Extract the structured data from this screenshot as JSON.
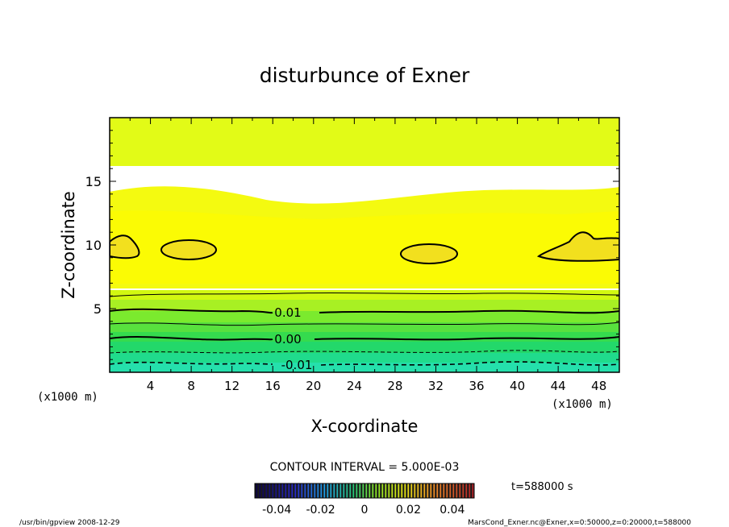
{
  "chart_data": {
    "type": "heatmap",
    "title": "disturbunce of Exner",
    "xlabel": "X-coordinate",
    "ylabel": "Z-coordinate",
    "x_unit_left": "(x1000 m)",
    "x_unit_right": "(x1000 m)",
    "xlim": [
      0,
      50
    ],
    "ylim": [
      0,
      20
    ],
    "x_ticks": [
      4,
      8,
      12,
      16,
      20,
      24,
      28,
      32,
      36,
      40,
      44,
      48
    ],
    "y_ticks": [
      5,
      10,
      15
    ],
    "contour_labels": [
      {
        "label": "0.01",
        "x": 17.3,
        "z": 4.7
      },
      {
        "label": "0.00",
        "x": 17.3,
        "z": 2.6
      },
      {
        "label": "-0.01",
        "x": 17.3,
        "z": 0.6
      }
    ],
    "contour_interval_text": "CONTOUR INTERVAL = 5.000E-03",
    "colorbar_ticks": [
      "-0.04",
      "-0.02",
      "0",
      "0.02",
      "0.04"
    ],
    "colorbar_range": [
      -0.05,
      0.05
    ],
    "time_text": "t=588000  s",
    "footer_left": "/usr/bin/gpview   2008-12-29",
    "footer_right": "MarsCond_Exner.nc@Exner,x=0:50000,z=0:20000,t=588000"
  }
}
